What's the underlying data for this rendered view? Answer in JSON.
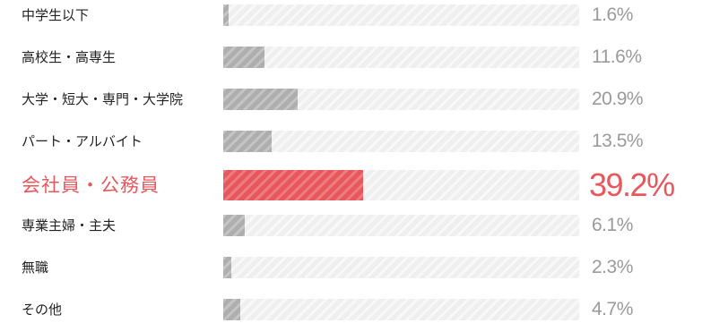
{
  "chart_data": {
    "type": "bar",
    "orientation": "horizontal",
    "unit": "%",
    "categories": [
      "中学生以下",
      "高校生・高専生",
      "大学・短大・専門・大学院",
      "パート・アルバイト",
      "会社員・公務員",
      "専業主婦・主夫",
      "無職",
      "その他"
    ],
    "display_labels": [
      "中学生以下",
      "高校生・高専生",
      "大学・短大・専門・大学院",
      "パート・アルバイト",
      "会社員・公務員",
      "専業主婦・主夫",
      "無職",
      "その他"
    ],
    "values": [
      1.6,
      11.6,
      20.9,
      13.5,
      39.2,
      6.1,
      2.3,
      4.7
    ],
    "value_labels": [
      "1.6%",
      "11.6%",
      "20.9%",
      "13.5%",
      "39.2%",
      "6.1%",
      "2.3%",
      "4.7%"
    ],
    "xlim": [
      0,
      100
    ],
    "highlight_index": 4,
    "grid": false,
    "legend": "none",
    "colors": {
      "bar": "#aeaeae",
      "track": "#efefef",
      "highlight": "#e8575c",
      "label": "#222222",
      "value_label": "#9a9a9a"
    }
  }
}
